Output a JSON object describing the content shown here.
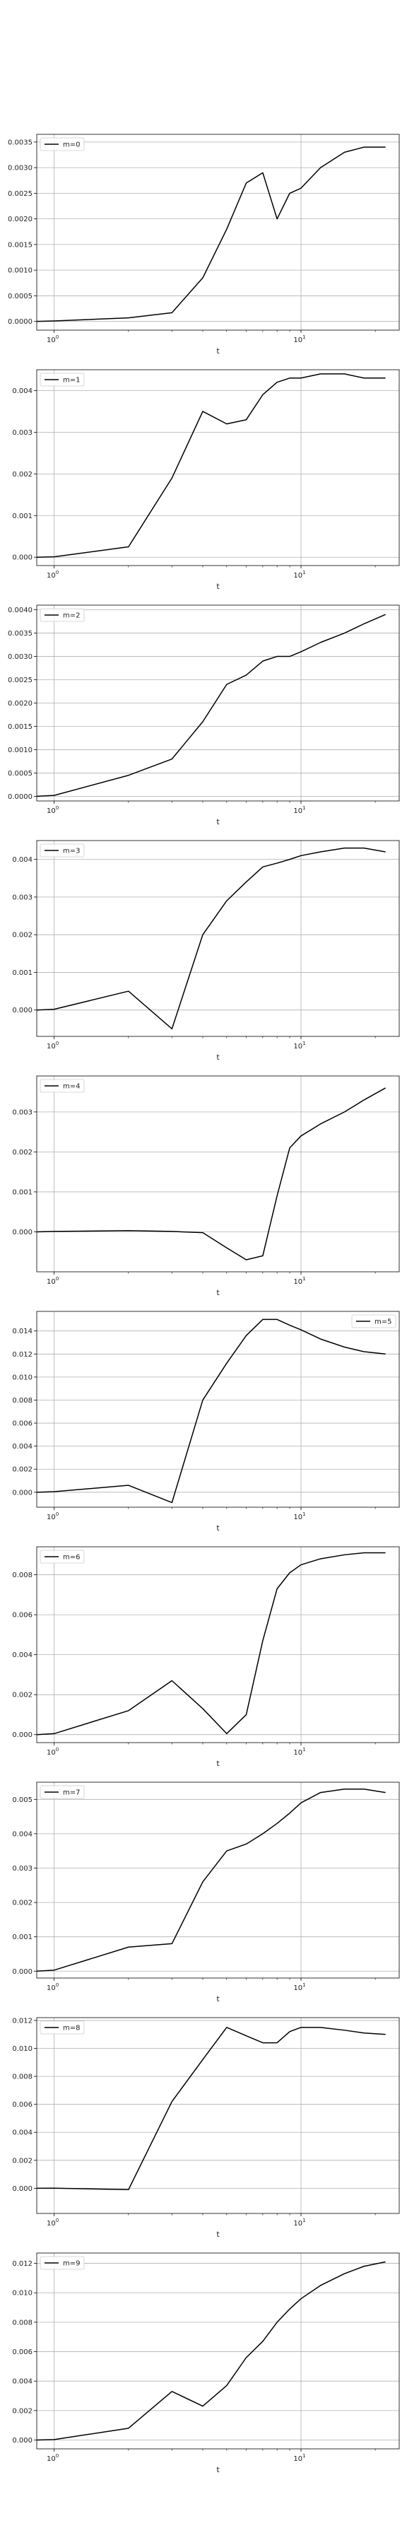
{
  "chart_data": [
    {
      "type": "line",
      "xscale": "log",
      "xlim": [
        0.85,
        25
      ],
      "ylim": [
        -0.00017,
        0.00365
      ],
      "xticks": [
        {
          "v": 1,
          "base": "10",
          "exp": "0"
        },
        {
          "v": 10,
          "base": "10",
          "exp": "1"
        }
      ],
      "yticks": [
        0.0,
        0.0005,
        0.001,
        0.0015,
        0.002,
        0.0025,
        0.003,
        0.0035
      ],
      "ytick_labels": [
        "0.0000",
        "0.0005",
        "0.0010",
        "0.0015",
        "0.0020",
        "0.0025",
        "0.0030",
        "0.0035"
      ],
      "xlabel": "t",
      "grid": true,
      "legend_loc": "upper left",
      "series": [
        {
          "name": "m=0",
          "color": "#000000",
          "x": [
            0.85,
            1.0,
            2.0,
            3.0,
            4.0,
            5.0,
            6.0,
            7.0,
            8.0,
            9.0,
            10.0,
            12.0,
            15.0,
            18.0,
            22.0
          ],
          "y": [
            0.0,
            1e-05,
            7e-05,
            0.00017,
            0.00085,
            0.0018,
            0.0027,
            0.0029,
            0.002,
            0.0025,
            0.0026,
            0.003,
            0.0033,
            0.0034,
            0.0034
          ]
        }
      ]
    },
    {
      "type": "line",
      "xscale": "log",
      "xlim": [
        0.85,
        25
      ],
      "ylim": [
        -0.0002,
        0.0045
      ],
      "xticks": [
        {
          "v": 1,
          "base": "10",
          "exp": "0"
        },
        {
          "v": 10,
          "base": "10",
          "exp": "1"
        }
      ],
      "yticks": [
        0.0,
        0.001,
        0.002,
        0.003,
        0.004
      ],
      "ytick_labels": [
        "0.000",
        "0.001",
        "0.002",
        "0.003",
        "0.004"
      ],
      "xlabel": "t",
      "grid": true,
      "legend_loc": "upper left",
      "series": [
        {
          "name": "m=1",
          "color": "#000000",
          "x": [
            0.85,
            1.0,
            2.0,
            3.0,
            4.0,
            5.0,
            6.0,
            7.0,
            8.0,
            9.0,
            10.0,
            12.0,
            15.0,
            18.0,
            22.0
          ],
          "y": [
            0.0,
            1e-05,
            0.00025,
            0.0019,
            0.0035,
            0.0032,
            0.0033,
            0.0039,
            0.0042,
            0.0043,
            0.0043,
            0.0044,
            0.0044,
            0.0043,
            0.0043
          ]
        }
      ]
    },
    {
      "type": "line",
      "xscale": "log",
      "xlim": [
        0.85,
        25
      ],
      "ylim": [
        -0.0001,
        0.0041
      ],
      "xticks": [
        {
          "v": 1,
          "base": "10",
          "exp": "0"
        },
        {
          "v": 10,
          "base": "10",
          "exp": "1"
        }
      ],
      "yticks": [
        0.0,
        0.0005,
        0.001,
        0.0015,
        0.002,
        0.0025,
        0.003,
        0.0035,
        0.004
      ],
      "ytick_labels": [
        "0.0000",
        "0.0005",
        "0.0010",
        "0.0015",
        "0.0020",
        "0.0025",
        "0.0030",
        "0.0035",
        "0.0040"
      ],
      "xlabel": "t",
      "grid": true,
      "legend_loc": "upper left",
      "series": [
        {
          "name": "m=2",
          "color": "#000000",
          "x": [
            0.85,
            1.0,
            2.0,
            3.0,
            4.0,
            5.0,
            6.0,
            7.0,
            8.0,
            9.0,
            10.0,
            12.0,
            15.0,
            18.0,
            22.0
          ],
          "y": [
            0.0,
            2e-05,
            0.00045,
            0.0008,
            0.0016,
            0.0024,
            0.0026,
            0.0029,
            0.003,
            0.003,
            0.0031,
            0.0033,
            0.0035,
            0.0037,
            0.0039
          ]
        }
      ]
    },
    {
      "type": "line",
      "xscale": "log",
      "xlim": [
        0.85,
        25
      ],
      "ylim": [
        -0.0007,
        0.0045
      ],
      "xticks": [
        {
          "v": 1,
          "base": "10",
          "exp": "0"
        },
        {
          "v": 10,
          "base": "10",
          "exp": "1"
        }
      ],
      "yticks": [
        0.0,
        0.001,
        0.002,
        0.003,
        0.004
      ],
      "ytick_labels": [
        "0.000",
        "0.001",
        "0.002",
        "0.003",
        "0.004"
      ],
      "xlabel": "t",
      "grid": true,
      "legend_loc": "upper left",
      "series": [
        {
          "name": "m=3",
          "color": "#000000",
          "x": [
            0.85,
            1.0,
            2.0,
            3.0,
            4.0,
            5.0,
            6.0,
            7.0,
            8.0,
            9.0,
            10.0,
            12.0,
            15.0,
            18.0,
            22.0
          ],
          "y": [
            0.0,
            2e-05,
            0.0005,
            -0.0005,
            0.002,
            0.0029,
            0.0034,
            0.0038,
            0.0039,
            0.004,
            0.0041,
            0.0042,
            0.0043,
            0.0043,
            0.0042
          ]
        }
      ]
    },
    {
      "type": "line",
      "xscale": "log",
      "xlim": [
        0.85,
        25
      ],
      "ylim": [
        -0.001,
        0.0039
      ],
      "xticks": [
        {
          "v": 1,
          "base": "10",
          "exp": "0"
        },
        {
          "v": 10,
          "base": "10",
          "exp": "1"
        }
      ],
      "yticks": [
        0.0,
        0.001,
        0.002,
        0.003
      ],
      "ytick_labels": [
        "0.000",
        "0.001",
        "0.002",
        "0.003"
      ],
      "xlabel": "t",
      "grid": true,
      "legend_loc": "upper left",
      "series": [
        {
          "name": "m=4",
          "color": "#000000",
          "x": [
            0.85,
            1.0,
            2.0,
            3.0,
            4.0,
            5.0,
            6.0,
            7.0,
            8.0,
            9.0,
            10.0,
            12.0,
            15.0,
            18.0,
            22.0
          ],
          "y": [
            0.0,
            1e-05,
            3e-05,
            1e-05,
            -2e-05,
            -0.0004,
            -0.0007,
            -0.0006,
            0.0009,
            0.0021,
            0.0024,
            0.0027,
            0.003,
            0.0033,
            0.0036
          ]
        }
      ]
    },
    {
      "type": "line",
      "xscale": "log",
      "xlim": [
        0.85,
        25
      ],
      "ylim": [
        -0.0013,
        0.0157
      ],
      "xticks": [
        {
          "v": 1,
          "base": "10",
          "exp": "0"
        },
        {
          "v": 10,
          "base": "10",
          "exp": "1"
        }
      ],
      "yticks": [
        0.0,
        0.002,
        0.004,
        0.006,
        0.008,
        0.01,
        0.012,
        0.014
      ],
      "ytick_labels": [
        "0.000",
        "0.002",
        "0.004",
        "0.006",
        "0.008",
        "0.010",
        "0.012",
        "0.014"
      ],
      "xlabel": "t",
      "grid": true,
      "legend_loc": "upper right",
      "series": [
        {
          "name": "m=5",
          "color": "#000000",
          "x": [
            0.85,
            1.0,
            2.0,
            3.0,
            4.0,
            5.0,
            6.0,
            7.0,
            8.0,
            9.0,
            10.0,
            12.0,
            15.0,
            18.0,
            22.0
          ],
          "y": [
            0.0,
            5e-05,
            0.0006,
            -0.0009,
            0.008,
            0.0112,
            0.0136,
            0.015,
            0.015,
            0.0145,
            0.0141,
            0.0133,
            0.0126,
            0.0122,
            0.012
          ]
        }
      ]
    },
    {
      "type": "line",
      "xscale": "log",
      "xlim": [
        0.85,
        25
      ],
      "ylim": [
        -0.0004,
        0.0094
      ],
      "xticks": [
        {
          "v": 1,
          "base": "10",
          "exp": "0"
        },
        {
          "v": 10,
          "base": "10",
          "exp": "1"
        }
      ],
      "yticks": [
        0.0,
        0.002,
        0.004,
        0.006,
        0.008
      ],
      "ytick_labels": [
        "0.000",
        "0.002",
        "0.004",
        "0.006",
        "0.008"
      ],
      "xlabel": "t",
      "grid": true,
      "legend_loc": "upper left",
      "series": [
        {
          "name": "m=6",
          "color": "#000000",
          "x": [
            0.85,
            1.0,
            2.0,
            3.0,
            4.0,
            5.0,
            6.0,
            7.0,
            8.0,
            9.0,
            10.0,
            12.0,
            15.0,
            18.0,
            22.0
          ],
          "y": [
            0.0,
            5e-05,
            0.0012,
            0.0027,
            0.0013,
            5e-05,
            0.001,
            0.0047,
            0.0073,
            0.0081,
            0.0085,
            0.0088,
            0.009,
            0.0091,
            0.0091
          ]
        }
      ]
    },
    {
      "type": "line",
      "xscale": "log",
      "xlim": [
        0.85,
        25
      ],
      "ylim": [
        -0.0002,
        0.0055
      ],
      "xticks": [
        {
          "v": 1,
          "base": "10",
          "exp": "0"
        },
        {
          "v": 10,
          "base": "10",
          "exp": "1"
        }
      ],
      "yticks": [
        0.0,
        0.001,
        0.002,
        0.003,
        0.004,
        0.005
      ],
      "ytick_labels": [
        "0.000",
        "0.001",
        "0.002",
        "0.003",
        "0.004",
        "0.005"
      ],
      "xlabel": "t",
      "grid": true,
      "legend_loc": "upper left",
      "series": [
        {
          "name": "m=7",
          "color": "#000000",
          "x": [
            0.85,
            1.0,
            2.0,
            3.0,
            4.0,
            5.0,
            6.0,
            7.0,
            8.0,
            9.0,
            10.0,
            12.0,
            15.0,
            18.0,
            22.0
          ],
          "y": [
            0.0,
            3e-05,
            0.0007,
            0.0008,
            0.0026,
            0.0035,
            0.0037,
            0.004,
            0.0043,
            0.0046,
            0.0049,
            0.0052,
            0.0053,
            0.0053,
            0.0052
          ]
        }
      ]
    },
    {
      "type": "line",
      "xscale": "log",
      "xlim": [
        0.85,
        25
      ],
      "ylim": [
        -0.0018,
        0.0122
      ],
      "xticks": [
        {
          "v": 1,
          "base": "10",
          "exp": "0"
        },
        {
          "v": 10,
          "base": "10",
          "exp": "1"
        }
      ],
      "yticks": [
        0.0,
        0.002,
        0.004,
        0.006,
        0.008,
        0.01,
        0.012
      ],
      "ytick_labels": [
        "0.000",
        "0.002",
        "0.004",
        "0.006",
        "0.008",
        "0.010",
        "0.012"
      ],
      "xlabel": "t",
      "grid": true,
      "legend_loc": "upper left",
      "series": [
        {
          "name": "m=8",
          "color": "#000000",
          "x": [
            0.85,
            1.0,
            2.0,
            3.0,
            4.0,
            5.0,
            6.0,
            7.0,
            8.0,
            9.0,
            10.0,
            12.0,
            15.0,
            18.0,
            22.0
          ],
          "y": [
            0.0,
            1e-05,
            -0.0001,
            0.0062,
            0.0092,
            0.0115,
            0.0109,
            0.0104,
            0.0104,
            0.0112,
            0.0115,
            0.0115,
            0.0113,
            0.0111,
            0.011
          ]
        }
      ]
    },
    {
      "type": "line",
      "xscale": "log",
      "xlim": [
        0.85,
        25
      ],
      "ylim": [
        -0.0006,
        0.0127
      ],
      "xticks": [
        {
          "v": 1,
          "base": "10",
          "exp": "0"
        },
        {
          "v": 10,
          "base": "10",
          "exp": "1"
        }
      ],
      "yticks": [
        0.0,
        0.002,
        0.004,
        0.006,
        0.008,
        0.01,
        0.012
      ],
      "ytick_labels": [
        "0.000",
        "0.002",
        "0.004",
        "0.006",
        "0.008",
        "0.010",
        "0.012"
      ],
      "xlabel": "t",
      "grid": true,
      "legend_loc": "upper left",
      "series": [
        {
          "name": "m=9",
          "color": "#000000",
          "x": [
            0.85,
            1.0,
            2.0,
            3.0,
            4.0,
            5.0,
            6.0,
            7.0,
            8.0,
            9.0,
            10.0,
            12.0,
            15.0,
            18.0,
            22.0
          ],
          "y": [
            0.0,
            3e-05,
            0.0008,
            0.0033,
            0.0023,
            0.0037,
            0.0056,
            0.0067,
            0.008,
            0.0089,
            0.0096,
            0.0105,
            0.0113,
            0.0118,
            0.0121
          ]
        }
      ]
    }
  ]
}
